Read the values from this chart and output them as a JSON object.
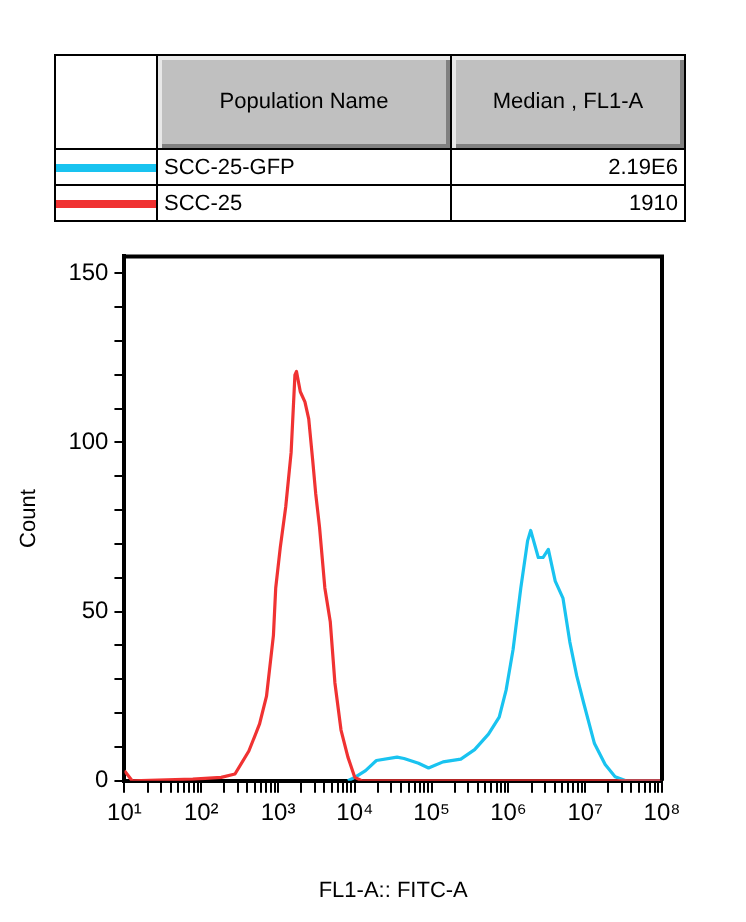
{
  "chart_data": {
    "type": "line",
    "xlabel": "FL1-A:: FITC-A",
    "ylabel": "Count",
    "legend": "top",
    "legend_title": "Population Name",
    "annotations": [
      "Median , FL1-A",
      "2.19E6",
      "1910"
    ],
    "log": "x",
    "grid": false,
    "marker": "none",
    "line_style": "solid",
    "xlim": [
      10,
      100000000
    ],
    "ylim": [
      0,
      155
    ],
    "xticks": [
      {
        "value": 10,
        "label": "10¹"
      },
      {
        "value": 20,
        "label": null
      },
      {
        "value": 30,
        "label": null
      },
      {
        "value": 40,
        "label": null
      },
      {
        "value": 50,
        "label": null
      },
      {
        "value": 60,
        "label": null
      },
      {
        "value": 70,
        "label": null
      },
      {
        "value": 80,
        "label": null
      },
      {
        "value": 90,
        "label": null
      },
      {
        "value": 100,
        "label": "10²"
      },
      {
        "value": 200,
        "label": null
      },
      {
        "value": 300,
        "label": null
      },
      {
        "value": 400,
        "label": null
      },
      {
        "value": 500,
        "label": null
      },
      {
        "value": 600,
        "label": null
      },
      {
        "value": 700,
        "label": null
      },
      {
        "value": 800,
        "label": null
      },
      {
        "value": 900,
        "label": null
      },
      {
        "value": 1000,
        "label": "10³"
      },
      {
        "value": 2000,
        "label": null
      },
      {
        "value": 3000,
        "label": null
      },
      {
        "value": 4000,
        "label": null
      },
      {
        "value": 5000,
        "label": null
      },
      {
        "value": 6000,
        "label": null
      },
      {
        "value": 7000,
        "label": null
      },
      {
        "value": 8000,
        "label": null
      },
      {
        "value": 9000,
        "label": null
      },
      {
        "value": 10000,
        "label": "10⁴"
      },
      {
        "value": 20000,
        "label": null
      },
      {
        "value": 30000,
        "label": null
      },
      {
        "value": 40000,
        "label": null
      },
      {
        "value": 50000,
        "label": null
      },
      {
        "value": 60000,
        "label": null
      },
      {
        "value": 70000,
        "label": null
      },
      {
        "value": 80000,
        "label": null
      },
      {
        "value": 90000,
        "label": null
      },
      {
        "value": 100000,
        "label": "10⁵"
      },
      {
        "value": 200000,
        "label": null
      },
      {
        "value": 300000,
        "label": null
      },
      {
        "value": 400000,
        "label": null
      },
      {
        "value": 500000,
        "label": null
      },
      {
        "value": 600000,
        "label": null
      },
      {
        "value": 700000,
        "label": null
      },
      {
        "value": 800000,
        "label": null
      },
      {
        "value": 900000,
        "label": null
      },
      {
        "value": 1000000,
        "label": "10⁶"
      },
      {
        "value": 2000000,
        "label": null
      },
      {
        "value": 3000000,
        "label": null
      },
      {
        "value": 4000000,
        "label": null
      },
      {
        "value": 5000000,
        "label": null
      },
      {
        "value": 6000000,
        "label": null
      },
      {
        "value": 7000000,
        "label": null
      },
      {
        "value": 8000000,
        "label": null
      },
      {
        "value": 9000000,
        "label": null
      },
      {
        "value": 10000000,
        "label": "10⁷"
      },
      {
        "value": 20000000,
        "label": null
      },
      {
        "value": 30000000,
        "label": null
      },
      {
        "value": 40000000,
        "label": null
      },
      {
        "value": 50000000,
        "label": null
      },
      {
        "value": 60000000,
        "label": null
      },
      {
        "value": 70000000,
        "label": null
      },
      {
        "value": 80000000,
        "label": null
      },
      {
        "value": 90000000,
        "label": null
      },
      {
        "value": 100000000,
        "label": "10⁸"
      }
    ],
    "yticks": [
      0,
      {
        "value": 10,
        "label": null
      },
      {
        "value": 20,
        "label": null
      },
      {
        "value": 30,
        "label": null
      },
      {
        "value": 40,
        "label": null
      },
      50,
      {
        "value": 60,
        "label": null
      },
      {
        "value": 70,
        "label": null
      },
      {
        "value": 80,
        "label": null
      },
      {
        "value": 90,
        "label": null
      },
      100,
      {
        "value": 110,
        "label": null
      },
      {
        "value": 120,
        "label": null
      },
      {
        "value": 130,
        "label": null
      },
      {
        "value": 140,
        "label": null
      },
      150
    ],
    "series": [
      {
        "name": "SCC-25-GFP",
        "color": "#19c3f0",
        "x": [
          8130,
          10000,
          13800,
          19100,
          35500,
          43700,
          67600,
          91200,
          141000,
          240000,
          363000,
          550000,
          759000,
          933000,
          1150000,
          1450000,
          1780000,
          1950000,
          2450000,
          2820000,
          3310000,
          4070000,
          5130000,
          6310000,
          7760000,
          9550000,
          13200000,
          18200000,
          24500000,
          33900000,
          100000000
        ],
        "values": [
          0,
          1,
          3,
          6,
          7,
          6.6,
          5.2,
          3.8,
          5.6,
          6.4,
          9.2,
          13.8,
          18.8,
          26.8,
          38.8,
          57,
          71,
          74,
          66,
          66,
          68.4,
          59,
          54,
          41,
          31,
          23,
          11,
          4.8,
          1.2,
          0,
          0
        ]
      },
      {
        "name": "SCC-25",
        "color": "#f03232",
        "x": [
          10,
          12.6,
          77.6,
          182,
          275,
          417,
          575,
          708,
          871,
          933,
          1070,
          1260,
          1480,
          1660,
          1740,
          1950,
          2240,
          2510,
          2820,
          3090,
          3470,
          4070,
          4790,
          5500,
          6610,
          8130,
          10000,
          12300,
          100000000
        ],
        "values": [
          3,
          0,
          0.5,
          1,
          2,
          8.8,
          16.8,
          25,
          43,
          57,
          69,
          81,
          97,
          120,
          121,
          115,
          112,
          107,
          95,
          85,
          75,
          57,
          47,
          29,
          15,
          7,
          1,
          0,
          0
        ]
      }
    ]
  }
}
